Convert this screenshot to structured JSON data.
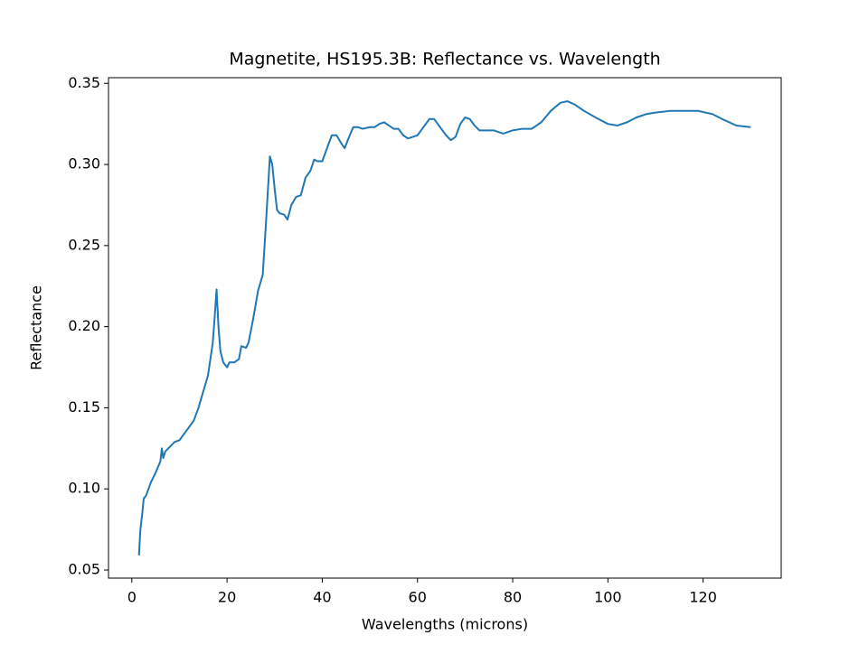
{
  "chart_data": {
    "type": "line",
    "title": "Magnetite, HS195.3B: Reflectance vs. Wavelength",
    "xlabel": "Wavelengths (microns)",
    "ylabel": "Reflectance",
    "xlim": [
      -4.9,
      136.4
    ],
    "ylim": [
      0.045,
      0.3535
    ],
    "xticks": [
      0,
      20,
      40,
      60,
      80,
      100,
      120
    ],
    "yticks": [
      0.05,
      {
        "value": 0.1,
        "label": "0.10"
      },
      0.15,
      {
        "value": 0.2,
        "label": "0.20"
      },
      0.25,
      {
        "value": 0.3,
        "label": "0.30"
      },
      0.35
    ],
    "series": [
      {
        "color": "#1f77b4",
        "x": [
          1.5,
          1.8,
          2.2,
          2.5,
          3,
          4,
          5,
          6,
          6.3,
          6.6,
          7,
          8,
          9,
          10,
          11,
          12,
          13,
          14,
          15,
          16,
          17,
          17.5,
          17.8,
          18.2,
          18.6,
          19.2,
          20,
          20.5,
          21.5,
          22.5,
          23,
          24,
          24.5,
          25.5,
          26.5,
          27.5,
          28.2,
          29,
          29.5,
          30,
          30.5,
          31,
          32,
          32.7,
          33.5,
          34.5,
          35.5,
          36.5,
          37.5,
          38.3,
          39,
          40,
          41,
          42,
          43,
          44,
          44.7,
          45.5,
          46.5,
          47.5,
          48.5,
          50,
          51,
          52,
          53,
          54,
          55,
          56,
          57,
          58,
          59,
          60,
          61,
          62.5,
          63.5,
          65,
          66,
          67,
          68,
          69,
          70,
          71,
          72,
          73,
          75,
          76,
          78,
          80,
          82,
          84,
          86,
          88,
          90,
          91.5,
          93,
          95,
          98,
          100,
          102,
          104,
          106,
          108,
          110,
          113,
          116,
          119,
          122,
          124,
          127,
          130
        ],
        "values": [
          0.059,
          0.075,
          0.085,
          0.094,
          0.096,
          0.104,
          0.11,
          0.117,
          0.125,
          0.119,
          0.123,
          0.126,
          0.129,
          0.13,
          0.134,
          0.138,
          0.142,
          0.15,
          0.16,
          0.17,
          0.19,
          0.21,
          0.223,
          0.2,
          0.185,
          0.178,
          0.175,
          0.178,
          0.178,
          0.18,
          0.188,
          0.187,
          0.19,
          0.205,
          0.222,
          0.232,
          0.265,
          0.305,
          0.3,
          0.285,
          0.272,
          0.27,
          0.269,
          0.266,
          0.275,
          0.28,
          0.281,
          0.292,
          0.296,
          0.303,
          0.302,
          0.302,
          0.31,
          0.318,
          0.318,
          0.313,
          0.31,
          0.316,
          0.323,
          0.323,
          0.322,
          0.323,
          0.323,
          0.325,
          0.326,
          0.324,
          0.322,
          0.322,
          0.318,
          0.316,
          0.317,
          0.318,
          0.322,
          0.328,
          0.328,
          0.322,
          0.318,
          0.315,
          0.317,
          0.325,
          0.329,
          0.328,
          0.324,
          0.321,
          0.321,
          0.321,
          0.319,
          0.321,
          0.322,
          0.322,
          0.326,
          0.333,
          0.338,
          0.339,
          0.337,
          0.333,
          0.328,
          0.325,
          0.324,
          0.326,
          0.329,
          0.331,
          0.332,
          0.333,
          0.333,
          0.333,
          0.331,
          0.328,
          0.324,
          0.323
        ]
      }
    ]
  }
}
